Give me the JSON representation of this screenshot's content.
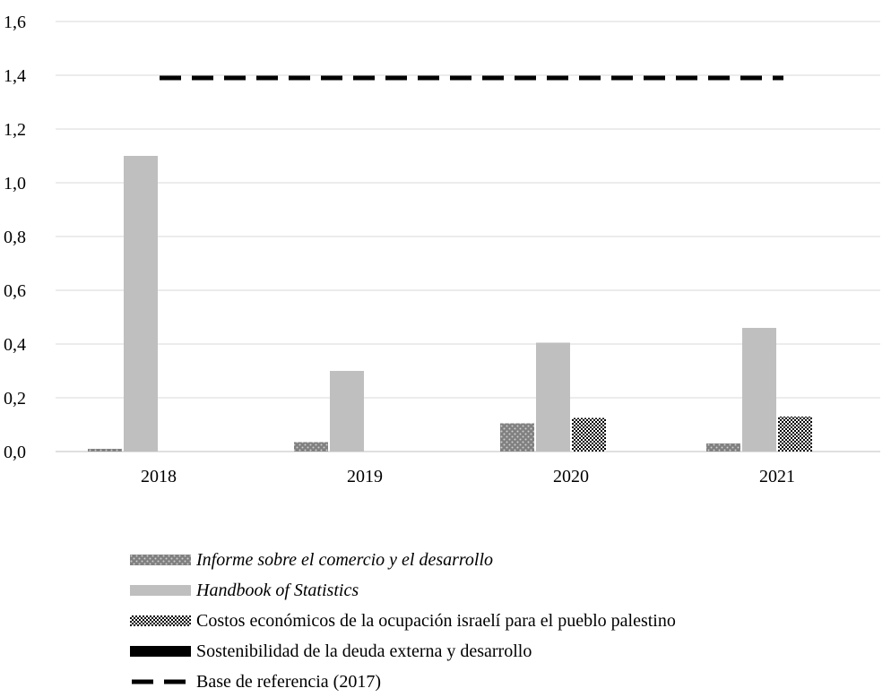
{
  "chart_data": {
    "type": "bar",
    "categories": [
      "2018",
      "2019",
      "2020",
      "2021"
    ],
    "yticks": [
      "0,0",
      "0,2",
      "0,4",
      "0,6",
      "0,8",
      "1,0",
      "1,2",
      "1,4",
      "1,6"
    ],
    "ylim": [
      0,
      1.6
    ],
    "grid": true,
    "legend_position": "bottom",
    "series": [
      {
        "name": "Informe sobre el comercio y el desarrollo",
        "values": [
          0.01,
          0.035,
          0.105,
          0.03
        ],
        "style": "dotted-dark",
        "color": "#7f7f7f",
        "italic": true
      },
      {
        "name": "Handbook of Statistics",
        "values": [
          1.1,
          0.3,
          0.405,
          0.46
        ],
        "style": "solid-light",
        "color": "#bfbfbf",
        "italic": true
      },
      {
        "name": "Costos económicos de la ocupación israelí para el pueblo palestino",
        "values": [
          0,
          0,
          0.125,
          0.13
        ],
        "style": "checker",
        "color": "#000000",
        "italic": false
      },
      {
        "name": "Sostenibilidad de la deuda externa y desarrollo",
        "values": [
          0,
          0,
          0,
          0
        ],
        "style": "solid-black",
        "color": "#000000",
        "italic": false
      }
    ],
    "reference_line": {
      "name": "Base de referencia (2017)",
      "value": 1.39,
      "style": "dashed",
      "color": "#000000"
    }
  }
}
